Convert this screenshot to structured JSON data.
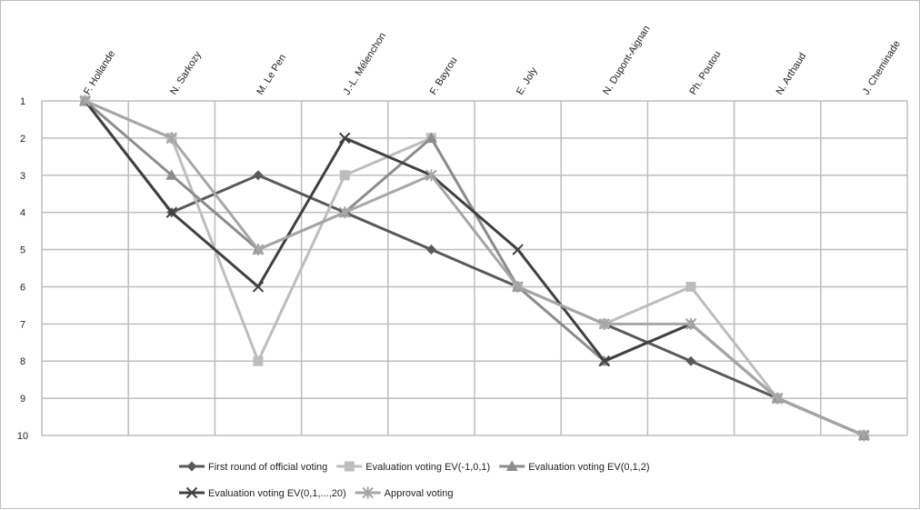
{
  "chart_data": {
    "type": "line",
    "title": "",
    "xlabel": "",
    "ylabel": "",
    "categories": [
      "F. Hollande",
      "N. Sarkozy",
      "M. Le Pen",
      "J.-L. Mélenchon",
      "F. Bayrou",
      "E. Joly",
      "N. Dupont-Aignan",
      "Ph. Poutou",
      "N. Arthaud",
      "J. Cheminade"
    ],
    "ylim": [
      1,
      10
    ],
    "y_reversed": true,
    "y_ticks": [
      1,
      2,
      3,
      4,
      5,
      6,
      7,
      8,
      9,
      10
    ],
    "grid": true,
    "legend_position": "bottom",
    "series": [
      {
        "name": "First round of official voting",
        "color": "#595959",
        "marker": "diamond",
        "values": [
          1,
          4,
          3,
          4,
          5,
          6,
          7,
          8,
          9,
          10
        ]
      },
      {
        "name": "Evaluation voting EV(-1,0,1)",
        "color": "#bdbdbd",
        "marker": "square",
        "values": [
          1,
          2,
          8,
          3,
          2,
          6,
          7,
          6,
          9,
          10
        ]
      },
      {
        "name": "Evaluation voting EV(0,1,2)",
        "color": "#8c8c8c",
        "marker": "triangle",
        "values": [
          1,
          3,
          5,
          4,
          2,
          6,
          8,
          7,
          9,
          10
        ]
      },
      {
        "name": "Evaluation voting EV(0,1,...,20)",
        "color": "#404040",
        "marker": "x",
        "values": [
          1,
          4,
          6,
          2,
          3,
          5,
          8,
          7,
          9,
          10
        ]
      },
      {
        "name": "Approval voting",
        "color": "#a6a6a6",
        "marker": "star",
        "values": [
          1,
          2,
          5,
          4,
          3,
          6,
          7,
          7,
          9,
          10
        ]
      }
    ]
  }
}
